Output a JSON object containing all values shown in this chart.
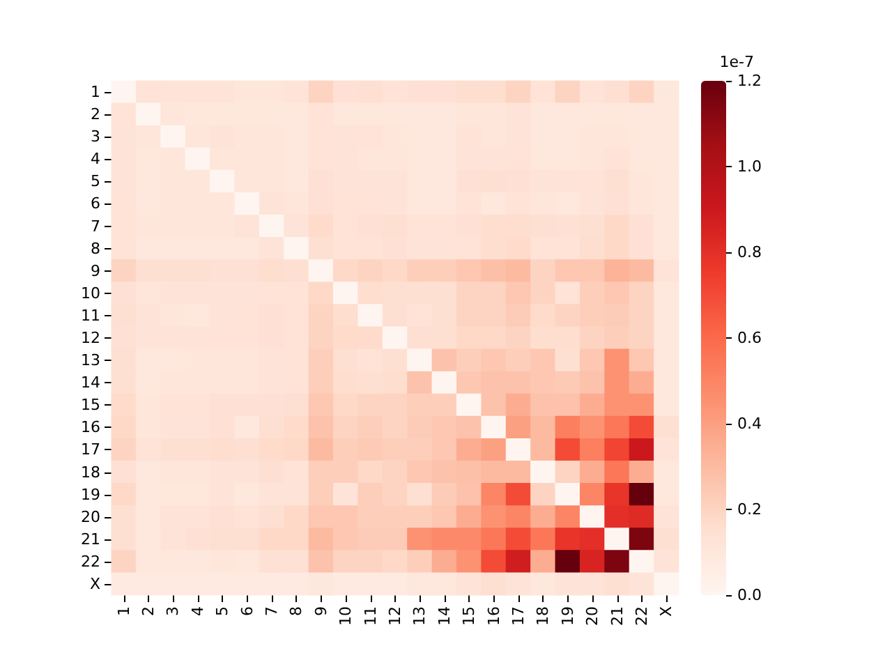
{
  "chart_data": {
    "type": "heatmap",
    "categories": [
      "1",
      "2",
      "3",
      "4",
      "5",
      "6",
      "7",
      "8",
      "9",
      "10",
      "11",
      "12",
      "13",
      "14",
      "15",
      "16",
      "17",
      "18",
      "19",
      "20",
      "21",
      "22",
      "X"
    ],
    "y_categories": [
      "1",
      "2",
      "3",
      "4",
      "5",
      "6",
      "7",
      "8",
      "9",
      "10",
      "11",
      "12",
      "13",
      "14",
      "15",
      "16",
      "17",
      "18",
      "19",
      "20",
      "21",
      "22",
      "X"
    ],
    "cells": [
      [
        0,
        0.13,
        0.12,
        0.12,
        0.12,
        0.11,
        0.11,
        0.12,
        0.2,
        0.14,
        0.15,
        0.13,
        0.14,
        0.14,
        0.16,
        0.16,
        0.2,
        0.13,
        0.2,
        0.13,
        0.15,
        0.2,
        0.1
      ],
      [
        0.13,
        0,
        0.11,
        0.1,
        0.1,
        0.1,
        0.1,
        0.09,
        0.13,
        0.1,
        0.1,
        0.1,
        0.1,
        0.1,
        0.11,
        0.11,
        0.12,
        0.1,
        0.09,
        0.1,
        0.1,
        0.1,
        0.09
      ],
      [
        0.12,
        0.11,
        0,
        0.11,
        0.12,
        0.11,
        0.11,
        0.1,
        0.13,
        0.12,
        0.13,
        0.11,
        0.09,
        0.1,
        0.13,
        0.11,
        0.12,
        0.1,
        0.09,
        0.11,
        0.11,
        0.09,
        0.09
      ],
      [
        0.12,
        0.1,
        0.11,
        0,
        0.11,
        0.11,
        0.11,
        0.1,
        0.13,
        0.12,
        0.11,
        0.11,
        0.1,
        0.1,
        0.12,
        0.12,
        0.13,
        0.1,
        0.09,
        0.11,
        0.13,
        0.1,
        0.09
      ],
      [
        0.12,
        0.1,
        0.11,
        0.11,
        0,
        0.11,
        0.11,
        0.1,
        0.14,
        0.12,
        0.12,
        0.12,
        0.1,
        0.1,
        0.14,
        0.15,
        0.14,
        0.12,
        0.12,
        0.13,
        0.15,
        0.11,
        0.09
      ],
      [
        0.13,
        0.1,
        0.11,
        0.11,
        0.11,
        0,
        0.12,
        0.11,
        0.14,
        0.13,
        0.13,
        0.12,
        0.1,
        0.1,
        0.13,
        0.1,
        0.13,
        0.11,
        0.1,
        0.12,
        0.14,
        0.11,
        0.09
      ],
      [
        0.13,
        0.11,
        0.11,
        0.11,
        0.11,
        0.12,
        0,
        0.12,
        0.17,
        0.13,
        0.14,
        0.15,
        0.13,
        0.13,
        0.14,
        0.16,
        0.16,
        0.15,
        0.14,
        0.15,
        0.18,
        0.14,
        0.1
      ],
      [
        0.13,
        0.1,
        0.1,
        0.1,
        0.1,
        0.1,
        0.12,
        0,
        0.15,
        0.13,
        0.13,
        0.14,
        0.12,
        0.12,
        0.13,
        0.16,
        0.17,
        0.13,
        0.13,
        0.16,
        0.18,
        0.14,
        0.09
      ],
      [
        0.2,
        0.15,
        0.15,
        0.15,
        0.14,
        0.14,
        0.16,
        0.15,
        0,
        0.18,
        0.2,
        0.18,
        0.22,
        0.22,
        0.25,
        0.28,
        0.3,
        0.2,
        0.25,
        0.25,
        0.33,
        0.3,
        0.12
      ],
      [
        0.14,
        0.11,
        0.12,
        0.12,
        0.12,
        0.12,
        0.13,
        0.13,
        0.18,
        0,
        0.16,
        0.15,
        0.15,
        0.15,
        0.2,
        0.2,
        0.25,
        0.2,
        0.13,
        0.22,
        0.25,
        0.2,
        0.1
      ],
      [
        0.15,
        0.12,
        0.11,
        0.1,
        0.12,
        0.13,
        0.14,
        0.13,
        0.2,
        0.16,
        0,
        0.15,
        0.13,
        0.15,
        0.2,
        0.2,
        0.23,
        0.17,
        0.2,
        0.22,
        0.23,
        0.2,
        0.1
      ],
      [
        0.14,
        0.12,
        0.12,
        0.12,
        0.13,
        0.13,
        0.14,
        0.13,
        0.2,
        0.17,
        0.17,
        0,
        0.15,
        0.15,
        0.18,
        0.18,
        0.2,
        0.16,
        0.16,
        0.2,
        0.22,
        0.2,
        0.1
      ],
      [
        0.15,
        0.1,
        0.1,
        0.11,
        0.11,
        0.11,
        0.12,
        0.13,
        0.22,
        0.15,
        0.13,
        0.15,
        0,
        0.27,
        0.22,
        0.25,
        0.22,
        0.25,
        0.15,
        0.25,
        0.45,
        0.25,
        0.1
      ],
      [
        0.15,
        0.1,
        0.11,
        0.11,
        0.11,
        0.11,
        0.12,
        0.13,
        0.22,
        0.16,
        0.15,
        0.16,
        0.27,
        0,
        0.25,
        0.27,
        0.27,
        0.25,
        0.24,
        0.27,
        0.45,
        0.35,
        0.1
      ],
      [
        0.17,
        0.11,
        0.13,
        0.13,
        0.14,
        0.14,
        0.14,
        0.15,
        0.25,
        0.18,
        0.2,
        0.2,
        0.22,
        0.22,
        0,
        0.27,
        0.35,
        0.27,
        0.27,
        0.35,
        0.45,
        0.45,
        0.1
      ],
      [
        0.18,
        0.11,
        0.12,
        0.12,
        0.14,
        0.1,
        0.15,
        0.17,
        0.27,
        0.2,
        0.22,
        0.2,
        0.23,
        0.25,
        0.27,
        0,
        0.4,
        0.3,
        0.52,
        0.45,
        0.55,
        0.7,
        0.15
      ],
      [
        0.2,
        0.13,
        0.15,
        0.15,
        0.16,
        0.15,
        0.17,
        0.18,
        0.3,
        0.22,
        0.24,
        0.22,
        0.22,
        0.25,
        0.35,
        0.4,
        0,
        0.3,
        0.7,
        0.52,
        0.72,
        0.9,
        0.12
      ],
      [
        0.14,
        0.1,
        0.11,
        0.11,
        0.12,
        0.12,
        0.15,
        0.13,
        0.22,
        0.22,
        0.18,
        0.2,
        0.25,
        0.27,
        0.28,
        0.3,
        0.3,
        0,
        0.2,
        0.35,
        0.55,
        0.35,
        0.1
      ],
      [
        0.18,
        0.1,
        0.1,
        0.1,
        0.12,
        0.1,
        0.12,
        0.12,
        0.22,
        0.12,
        0.22,
        0.2,
        0.15,
        0.23,
        0.27,
        0.5,
        0.7,
        0.2,
        0,
        0.5,
        0.78,
        1.2,
        0.1
      ],
      [
        0.15,
        0.1,
        0.12,
        0.12,
        0.14,
        0.13,
        0.15,
        0.18,
        0.25,
        0.25,
        0.22,
        0.22,
        0.22,
        0.25,
        0.35,
        0.45,
        0.5,
        0.35,
        0.5,
        0,
        0.8,
        0.82,
        0.12
      ],
      [
        0.15,
        0.09,
        0.12,
        0.14,
        0.15,
        0.15,
        0.18,
        0.18,
        0.3,
        0.25,
        0.23,
        0.23,
        0.45,
        0.48,
        0.48,
        0.55,
        0.7,
        0.55,
        0.78,
        0.8,
        0,
        1.15,
        0.15
      ],
      [
        0.2,
        0.1,
        0.1,
        0.1,
        0.11,
        0.1,
        0.14,
        0.14,
        0.27,
        0.2,
        0.2,
        0.18,
        0.22,
        0.35,
        0.45,
        0.7,
        0.88,
        0.35,
        1.2,
        0.85,
        1.15,
        0,
        0.12
      ],
      [
        0.08,
        0.08,
        0.08,
        0.08,
        0.08,
        0.08,
        0.08,
        0.08,
        0.1,
        0.08,
        0.08,
        0.08,
        0.1,
        0.1,
        0.12,
        0.15,
        0.12,
        0.1,
        0.12,
        0.12,
        0.15,
        0.12,
        0
      ]
    ],
    "clim": [
      0,
      1.2
    ],
    "cticks": [
      {
        "value": 0,
        "label": "0.0"
      },
      0.2,
      0.4,
      0.6,
      0.8,
      {
        "value": 1,
        "label": "1.0"
      },
      1.2
    ],
    "clabel": "1e-7"
  }
}
